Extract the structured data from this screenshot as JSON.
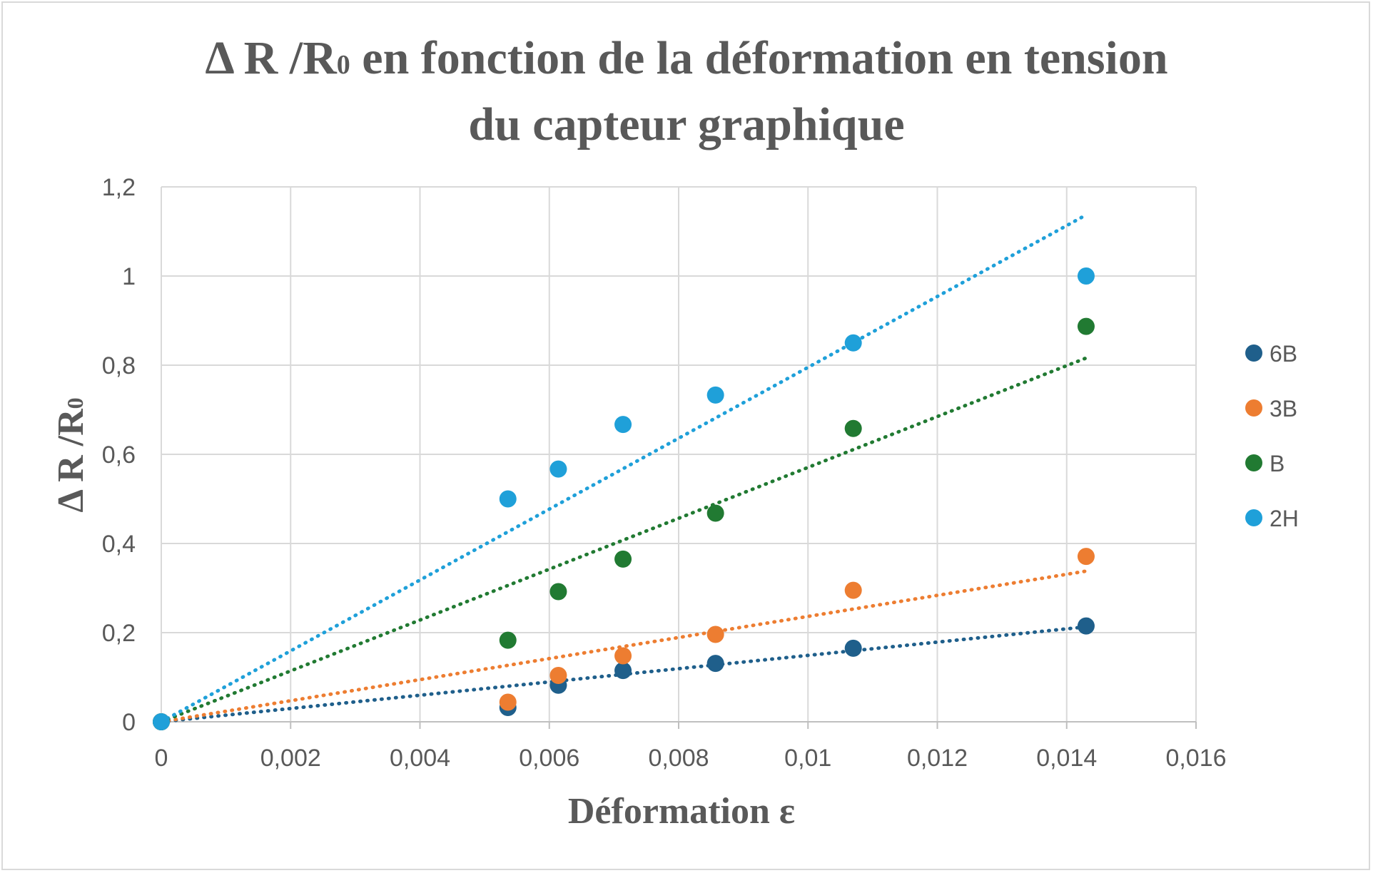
{
  "chart_data": {
    "type": "scatter",
    "title_line1": "Δ R /R",
    "title_sub": "0",
    "title_rest": " en fonction de la déformation en tension",
    "title_line2": "du capteur graphique",
    "xlabel": "Déformation ε",
    "ylabel": "Δ R /R0",
    "xlim": [
      0,
      0.016
    ],
    "ylim": [
      0,
      1.2
    ],
    "x_ticks": [
      "0",
      "0,002",
      "0,004",
      "0,006",
      "0,008",
      "0,01",
      "0,012",
      "0,014",
      "0,016"
    ],
    "y_ticks": [
      "0",
      "0,2",
      "0,4",
      "0,6",
      "0,8",
      "1",
      "1,2"
    ],
    "grid": true,
    "legend_position": "right",
    "x": [
      0,
      0.00536,
      0.00614,
      0.00714,
      0.00857,
      0.0107,
      0.0143
    ],
    "series": [
      {
        "name": "6B",
        "color": "#1f5f8b",
        "values": [
          0,
          0.032,
          0.082,
          0.115,
          0.131,
          0.165,
          0.215
        ],
        "trend_end": 0.213
      },
      {
        "name": "3B",
        "color": "#ed7d31",
        "values": [
          0,
          0.044,
          0.104,
          0.148,
          0.196,
          0.295,
          0.371
        ],
        "trend_end": 0.338
      },
      {
        "name": "B",
        "color": "#217a32",
        "values": [
          0,
          0.183,
          0.292,
          0.365,
          0.468,
          0.658,
          0.887
        ],
        "trend_end": 0.816
      },
      {
        "name": "2H",
        "color": "#1fa0d9",
        "values": [
          0,
          0.5,
          0.567,
          0.667,
          0.733,
          0.85,
          1.0
        ],
        "trend_end": 1.137
      }
    ],
    "trendline_x_end": 0.0143
  }
}
